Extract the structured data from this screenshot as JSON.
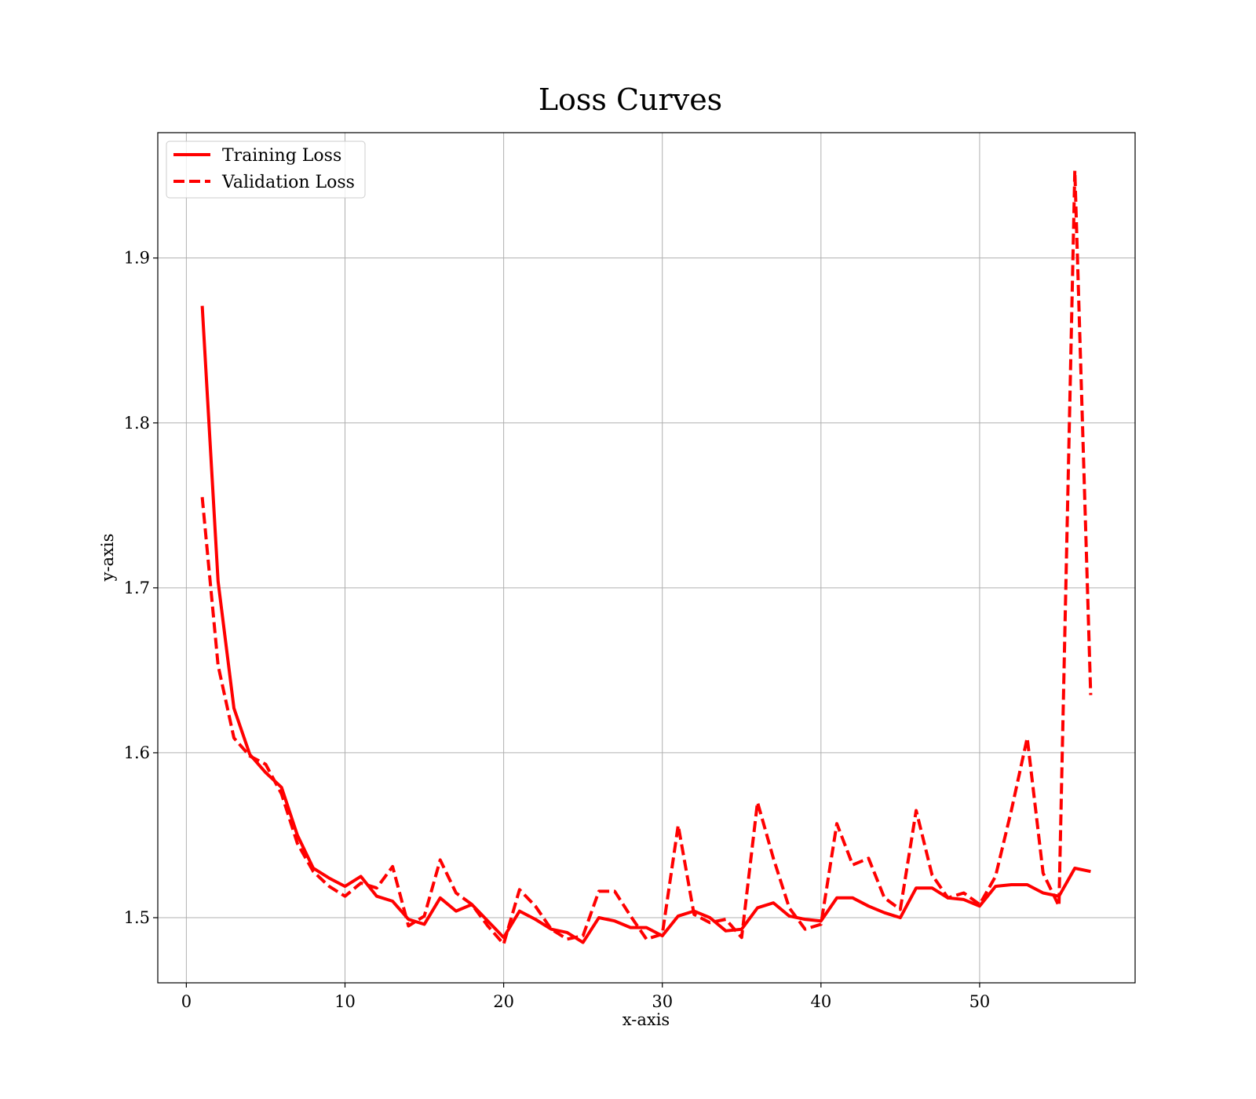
{
  "chart_data": {
    "type": "line",
    "title": "Loss Curves",
    "xlabel": "x-axis",
    "ylabel": "y-axis",
    "xlim": [
      -1.8,
      59.8
    ],
    "ylim": [
      1.4605,
      1.976
    ],
    "xticks": [
      0,
      10,
      20,
      30,
      40,
      50
    ],
    "yticks": [
      1.5,
      1.6,
      1.7,
      1.8,
      1.9
    ],
    "xtick_labels": [
      "0",
      "10",
      "20",
      "30",
      "40",
      "50"
    ],
    "ytick_labels": [
      "1.5",
      "1.6",
      "1.7",
      "1.8",
      "1.9"
    ],
    "grid": true,
    "legend_position": "top-left",
    "color": "#ff0000",
    "x": [
      1,
      2,
      3,
      4,
      5,
      6,
      7,
      8,
      9,
      10,
      11,
      12,
      13,
      14,
      15,
      16,
      17,
      18,
      19,
      20,
      21,
      22,
      23,
      24,
      25,
      26,
      27,
      28,
      29,
      30,
      31,
      32,
      33,
      34,
      35,
      36,
      37,
      38,
      39,
      40,
      41,
      42,
      43,
      44,
      45,
      46,
      47,
      48,
      49,
      50,
      51,
      52,
      53,
      54,
      55,
      56,
      57
    ],
    "series": [
      {
        "name": "Training Loss",
        "style": "solid",
        "values": [
          1.871,
          1.704,
          1.627,
          1.599,
          1.588,
          1.579,
          1.55,
          1.53,
          1.524,
          1.519,
          1.525,
          1.513,
          1.51,
          1.499,
          1.496,
          1.512,
          1.504,
          1.508,
          1.498,
          1.488,
          1.504,
          1.499,
          1.493,
          1.491,
          1.485,
          1.5,
          1.498,
          1.494,
          1.494,
          1.489,
          1.501,
          1.504,
          1.5,
          1.492,
          1.493,
          1.506,
          1.509,
          1.501,
          1.499,
          1.498,
          1.512,
          1.512,
          1.507,
          1.503,
          1.5,
          1.518,
          1.518,
          1.512,
          1.511,
          1.507,
          1.519,
          1.52,
          1.52,
          1.515,
          1.513,
          1.53,
          1.528
        ]
      },
      {
        "name": "Validation Loss",
        "style": "dashed",
        "values": [
          1.755,
          1.653,
          1.609,
          1.598,
          1.593,
          1.575,
          1.545,
          1.528,
          1.519,
          1.513,
          1.521,
          1.518,
          1.531,
          1.495,
          1.501,
          1.535,
          1.515,
          1.508,
          1.495,
          1.484,
          1.517,
          1.507,
          1.493,
          1.487,
          1.489,
          1.516,
          1.516,
          1.501,
          1.487,
          1.49,
          1.556,
          1.502,
          1.497,
          1.499,
          1.488,
          1.57,
          1.536,
          1.506,
          1.493,
          1.496,
          1.557,
          1.532,
          1.536,
          1.512,
          1.505,
          1.565,
          1.526,
          1.512,
          1.515,
          1.508,
          1.525,
          1.565,
          1.609,
          1.527,
          1.507,
          1.953,
          1.635
        ]
      }
    ]
  }
}
